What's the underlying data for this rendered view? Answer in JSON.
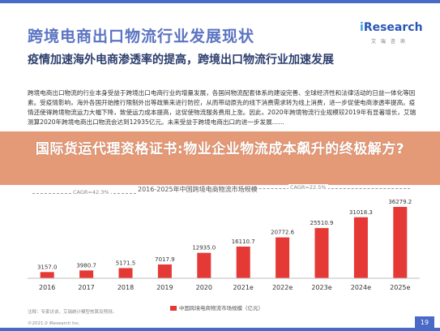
{
  "header": {
    "title": "跨境电商出口物流行业发展现状",
    "logo_i": "i",
    "logo_rest": "Research",
    "logo_sub": "艾 瑞 咨 询",
    "subtitle": "疫情加速海外电商渗透率的提高，跨境出口物流行业加速发展",
    "body": "跨境电商出口物流的行业本身受益于跨境出口电商行业的增量发展，各国间物流配套体系的建设完善、全球经济性和法律活动的日益一体化等因素。受疫情影响，海外各国开始推行限制外出等政策来进行防控，从而带动原先的线下消费需求转为线上消费，进一步促使电商渗透率提高。疫情还使得跨境物流运力大幅下降，致使运力成本提高，这促使物流服务费用上涨。因此，2020年跨境物流行业规模较2019年有显著增长，艾瑞测算2020年跨境电商出口物流会达到12935亿元。未来受益于跨境电商出口的进一步发展……"
  },
  "banner": {
    "text": "国际货运代理资格证书:物业企业物流成本飙升的终极解方?"
  },
  "chart_data": {
    "type": "bar",
    "title": "2016-2025年中国跨境电商物流市场规模",
    "categories": [
      "2016",
      "2017",
      "2018",
      "2019",
      "2020",
      "2021e",
      "2022e",
      "2023e",
      "2024e",
      "2025e"
    ],
    "values": [
      3157.0,
      3980.7,
      5171.5,
      7017.9,
      12935.0,
      16110.7,
      20772.6,
      25510.9,
      31018.3,
      36279.2
    ],
    "value_labels": [
      "3157.0",
      "3980.7",
      "5171.5",
      "7017.9",
      "12935.0",
      "16110.7",
      "20772.6",
      "25510.9",
      "31018.3",
      "36279.2"
    ],
    "series": [
      {
        "name": "中国跨境电商物流市场规模（亿元）",
        "values": [
          3157.0,
          3980.7,
          5171.5,
          7017.9,
          12935.0,
          16110.7,
          20772.6,
          25510.9,
          31018.3,
          36279.2
        ]
      }
    ],
    "annotations": [
      "CAGR=42.3%",
      "CAGR=22.5%"
    ],
    "ylim": [
      0,
      40000
    ],
    "colors": {
      "historical": "#e53935",
      "forecast": "#e53935"
    },
    "legend_position": "bottom"
  },
  "footer": {
    "source": "注释：专家访谈，艾瑞统计模型核算及预测。",
    "copyright": "©2021.0 iResearch Inc.",
    "page": "19"
  }
}
